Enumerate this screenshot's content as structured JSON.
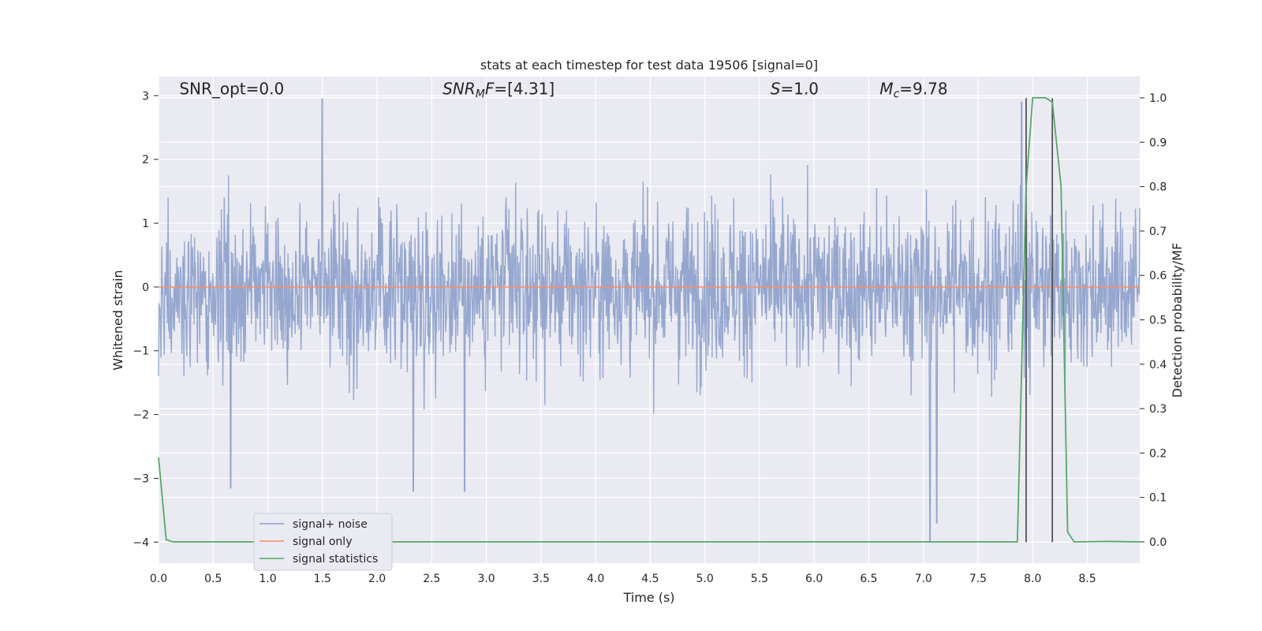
{
  "chart_data": {
    "type": "line",
    "title": "stats at each timestep for test data 19506 [signal=0]",
    "xlabel": "Time (s)",
    "ylabel_left": "Whitened strain",
    "ylabel_right": "Detection probability/MF",
    "xlim": [
      0.0,
      8.98
    ],
    "ylim_left": [
      -4.33,
      3.3
    ],
    "ylim_right": [
      -0.048,
      1.048
    ],
    "xticks": [
      0.0,
      0.5,
      1.0,
      1.5,
      2.0,
      2.5,
      3.0,
      3.5,
      4.0,
      4.5,
      5.0,
      5.5,
      6.0,
      6.5,
      7.0,
      7.5,
      8.0,
      8.5
    ],
    "xtick_labels": [
      "0.0",
      "0.5",
      "1.0",
      "1.5",
      "2.0",
      "2.5",
      "3.0",
      "3.5",
      "4.0",
      "4.5",
      "5.0",
      "5.5",
      "6.0",
      "6.5",
      "7.0",
      "7.5",
      "8.0",
      "8.5"
    ],
    "yticks_left": [
      -4,
      -3,
      -2,
      -1,
      0,
      1,
      2,
      3
    ],
    "ytick_labels_left": [
      "−4",
      "−3",
      "−2",
      "−1",
      "0",
      "1",
      "2",
      "3"
    ],
    "yticks_right": [
      0.0,
      0.1,
      0.2,
      0.3,
      0.4,
      0.5,
      0.6,
      0.7,
      0.8,
      0.9,
      1.0
    ],
    "ytick_labels_right": [
      "0.0",
      "0.1",
      "0.2",
      "0.3",
      "0.4",
      "0.5",
      "0.6",
      "0.7",
      "0.8",
      "0.9",
      "1.0"
    ],
    "grid": true,
    "legend_position": "lower-left",
    "annotations": [
      {
        "text": "SNR_opt=0.0",
        "x": 0.19,
        "y": 3.02
      },
      {
        "text": "SNR_MF=[4.31]",
        "x": 2.6,
        "y": 3.02
      },
      {
        "text": "S=1.0",
        "x": 5.6,
        "y": 3.02
      },
      {
        "text": "M_c=9.78",
        "x": 6.6,
        "y": 3.02
      }
    ],
    "vlines": [
      {
        "x": 7.94,
        "y_from": -4.0,
        "y_to": 2.96,
        "color": "#555555"
      },
      {
        "x": 8.18,
        "y_from": -4.0,
        "y_to": 2.96,
        "color": "#555555"
      }
    ],
    "series": [
      {
        "name": "signal+ noise",
        "axis": "left",
        "color": "#8da0cb",
        "style": "noise",
        "description_stats": {
          "n_samples": 2048,
          "dense_band": [
            -1.0,
            1.0
          ],
          "typical_extent": [
            -2.0,
            2.0
          ],
          "notable_peaks": [
            [
              1.5,
              2.95
            ],
            [
              0.66,
              -3.15
            ],
            [
              7.06,
              -4.0
            ],
            [
              7.12,
              -3.7
            ],
            [
              2.33,
              -3.2
            ],
            [
              2.8,
              -3.2
            ],
            [
              7.9,
              2.9
            ]
          ]
        }
      },
      {
        "name": "signal only",
        "axis": "left",
        "color": "#fc8d62",
        "x": [
          0.0,
          8.98
        ],
        "y": [
          0.0,
          0.0
        ]
      },
      {
        "name": "signal statistics",
        "axis": "right",
        "color": "#55a868",
        "x": [
          0.0,
          0.07,
          0.13,
          7.86,
          7.94,
          8.0,
          8.12,
          8.18,
          8.26,
          8.32,
          8.38,
          8.7,
          8.98
        ],
        "y": [
          0.19,
          0.005,
          0.0,
          0.0,
          0.8,
          1.0,
          1.0,
          0.99,
          0.8,
          0.022,
          0.0,
          0.001,
          0.0
        ]
      }
    ]
  }
}
